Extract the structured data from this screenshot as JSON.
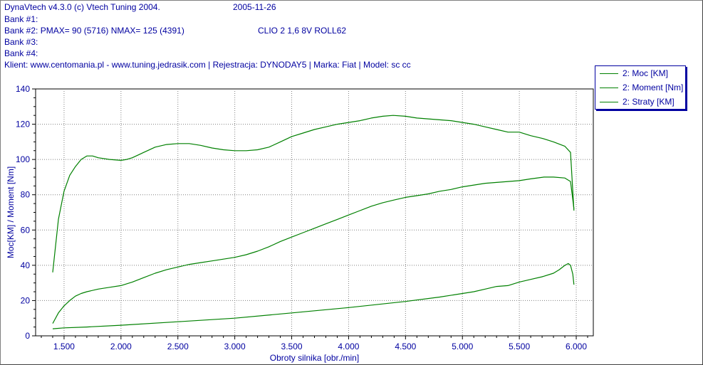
{
  "header": {
    "line1_app": "DynaVtech v4.3.0 (c) Vtech Tuning 2004.",
    "line1_date": "2005-11-26",
    "bank1": "Bank #1:",
    "bank2": "Bank #2: PMAX= 90 (5716)    NMAX= 125 (4391)",
    "bank2_model": "CLIO 2 1,6 8V  ROLL62",
    "bank3": "Bank #3:",
    "bank4": "Bank #4:",
    "client": "Klient: www.centomania.pl - www.tuning.jedrasik.com | Rejestracja: DYNODAY5 | Marka: Fiat | Model: sc cc"
  },
  "legend": [
    {
      "label": "2: Moc [KM]",
      "color": "#008000"
    },
    {
      "label": "2: Moment [Nm]",
      "color": "#008000"
    },
    {
      "label": "2: Straty [KM]",
      "color": "#008000"
    }
  ],
  "chart_data": {
    "type": "line",
    "xlabel": "Obroty silnika [obr./min]",
    "ylabel": "Moc[KM] / Moment [Nm]",
    "xlim": [
      1250,
      6150
    ],
    "ylim": [
      0,
      140
    ],
    "x_ticks": [
      1500,
      2000,
      2500,
      3000,
      3500,
      4000,
      4500,
      5000,
      5500,
      6000
    ],
    "x_tick_labels": [
      "1.500",
      "2.000",
      "2.500",
      "3.000",
      "3.500",
      "4.000",
      "4.500",
      "5.000",
      "5.500",
      "6.000"
    ],
    "y_ticks": [
      0,
      20,
      40,
      60,
      80,
      100,
      120,
      140
    ],
    "y_tick_labels": [
      "0",
      "20",
      "40",
      "60",
      "80",
      "100",
      "120",
      "140"
    ],
    "grid": true,
    "line_color": "#008000",
    "series": [
      {
        "name": "2: Moc [KM]",
        "x": [
          1400,
          1450,
          1500,
          1550,
          1600,
          1650,
          1700,
          1800,
          1900,
          2000,
          2100,
          2200,
          2300,
          2400,
          2500,
          2600,
          2700,
          2800,
          2900,
          3000,
          3100,
          3200,
          3300,
          3400,
          3500,
          3600,
          3700,
          3800,
          3900,
          4000,
          4100,
          4200,
          4300,
          4400,
          4500,
          4600,
          4700,
          4800,
          4900,
          5000,
          5100,
          5200,
          5300,
          5400,
          5500,
          5600,
          5716,
          5800,
          5900,
          5950,
          5980
        ],
        "values": [
          7,
          13,
          17,
          20,
          22.5,
          24,
          25,
          26.5,
          27.5,
          28.5,
          30.5,
          33,
          35.5,
          37.5,
          39,
          40.5,
          41.5,
          42.5,
          43.5,
          44.5,
          46,
          48,
          50.5,
          53.5,
          56,
          58.5,
          61,
          63.5,
          66,
          68.5,
          71,
          73.5,
          75.5,
          77,
          78.5,
          79.5,
          80.5,
          82,
          83,
          84.5,
          85.5,
          86.5,
          87,
          87.5,
          88,
          89,
          90,
          90,
          89.5,
          87.5,
          72
        ]
      },
      {
        "name": "2: Moment [Nm]",
        "x": [
          1400,
          1450,
          1500,
          1550,
          1600,
          1650,
          1700,
          1750,
          1800,
          1900,
          2000,
          2050,
          2100,
          2200,
          2300,
          2400,
          2500,
          2600,
          2700,
          2800,
          2900,
          3000,
          3100,
          3200,
          3300,
          3400,
          3500,
          3600,
          3700,
          3800,
          3900,
          4000,
          4100,
          4200,
          4300,
          4391,
          4500,
          4600,
          4700,
          4800,
          4900,
          5000,
          5100,
          5200,
          5300,
          5400,
          5500,
          5600,
          5700,
          5800,
          5900,
          5950,
          5980
        ],
        "values": [
          36,
          66,
          82,
          91,
          96,
          100,
          102,
          102,
          101,
          100,
          99.5,
          100,
          101,
          104,
          107,
          108.5,
          109,
          109,
          108,
          106.5,
          105.5,
          105,
          105,
          105.5,
          107,
          110,
          113,
          115,
          117,
          118.5,
          120,
          121,
          122,
          123.5,
          124.5,
          125,
          124.5,
          123.5,
          123,
          122.5,
          122,
          121,
          120,
          118.5,
          117,
          115.5,
          115.5,
          113.5,
          112,
          110,
          107.5,
          104,
          71
        ]
      },
      {
        "name": "2: Straty [KM]",
        "x": [
          1400,
          1500,
          1700,
          2000,
          2500,
          3000,
          3500,
          4000,
          4500,
          4800,
          5000,
          5100,
          5200,
          5300,
          5400,
          5500,
          5600,
          5700,
          5800,
          5850,
          5900,
          5930,
          5950,
          5970,
          5980
        ],
        "values": [
          4,
          4.5,
          5,
          6,
          8,
          10,
          13,
          16,
          19.5,
          22,
          24,
          25,
          26.5,
          28,
          28.5,
          30.5,
          32,
          33.5,
          35.5,
          37.5,
          40,
          41,
          40,
          35,
          29
        ]
      }
    ]
  }
}
